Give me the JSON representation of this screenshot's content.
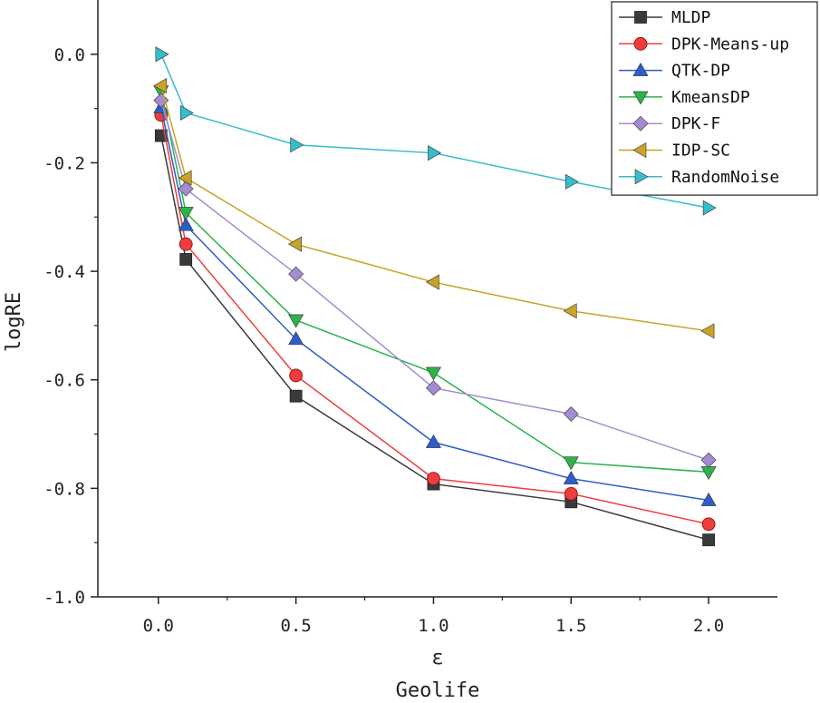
{
  "chart_data": {
    "type": "line",
    "title": "Geolife",
    "xlabel": "ε",
    "ylabel": "logRE",
    "x": [
      0.01,
      0.1,
      0.5,
      1.0,
      1.5,
      2.0
    ],
    "xlim": [
      -0.22,
      2.25
    ],
    "ylim": [
      -1.0,
      0.1
    ],
    "xticks": [
      0.0,
      0.5,
      1.0,
      1.5,
      2.0
    ],
    "xtick_labels": [
      "0.0",
      "0.5",
      "1.0",
      "1.5",
      "2.0"
    ],
    "yticks": [
      0.0,
      -0.2,
      -0.4,
      -0.6,
      -0.8,
      -1.0
    ],
    "ytick_labels": [
      "0.0",
      "-0.2",
      "-0.4",
      "-0.6",
      "-0.8",
      "-1.0"
    ],
    "legend_position": "top-right",
    "series": [
      {
        "name": "MLDP",
        "marker": "square",
        "color": "#3a3a3a",
        "values": [
          -0.15,
          -0.378,
          -0.63,
          -0.792,
          -0.825,
          -0.895
        ]
      },
      {
        "name": "DPK-Means-up",
        "marker": "circle",
        "color": "#f03c3c",
        "values": [
          -0.112,
          -0.35,
          -0.592,
          -0.782,
          -0.81,
          -0.866
        ]
      },
      {
        "name": "QTK-DP",
        "marker": "triangle-up",
        "color": "#2e5cc8",
        "values": [
          -0.098,
          -0.315,
          -0.525,
          -0.715,
          -0.782,
          -0.822
        ]
      },
      {
        "name": "KmeansDP",
        "marker": "triangle-down",
        "color": "#2db34a",
        "values": [
          -0.068,
          -0.292,
          -0.49,
          -0.587,
          -0.752,
          -0.77
        ]
      },
      {
        "name": "DPK-F",
        "marker": "diamond",
        "color": "#a58bd1",
        "values": [
          -0.085,
          -0.248,
          -0.405,
          -0.615,
          -0.663,
          -0.748
        ]
      },
      {
        "name": "IDP-SC",
        "marker": "triangle-left",
        "color": "#c9a227",
        "values": [
          -0.058,
          -0.228,
          -0.35,
          -0.42,
          -0.473,
          -0.51
        ]
      },
      {
        "name": "RandomNoise",
        "marker": "triangle-right",
        "color": "#36bccb",
        "values": [
          0.0,
          -0.108,
          -0.167,
          -0.182,
          -0.235,
          -0.283
        ]
      }
    ]
  }
}
